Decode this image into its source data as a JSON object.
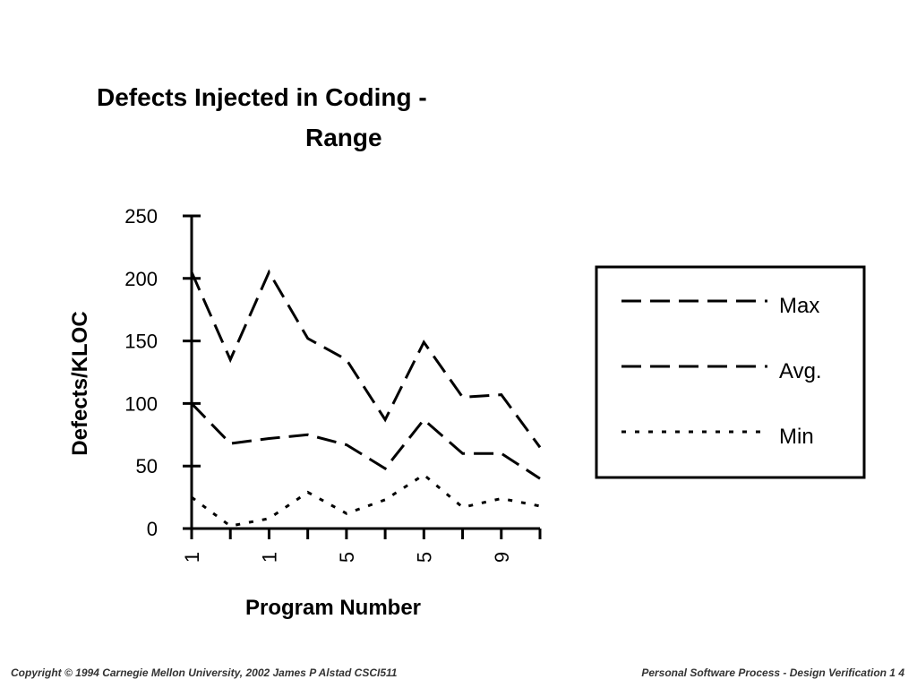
{
  "chart_data": {
    "type": "line",
    "title_line1": "Defects Injected in Coding -",
    "title_line2": "Range",
    "xlabel": "Program Number",
    "ylabel": "Defects/KLOC",
    "ylim": [
      0,
      250
    ],
    "yticks": [
      0,
      50,
      100,
      150,
      200,
      250
    ],
    "x_tick_labels": [
      "1",
      "",
      "1",
      "",
      "5",
      "",
      "5",
      "",
      "9",
      ""
    ],
    "series": [
      {
        "name": "Max",
        "values": [
          205,
          135,
          205,
          152,
          135,
          87,
          149,
          105,
          107,
          65
        ]
      },
      {
        "name": "Avg.",
        "values": [
          100,
          68,
          72,
          75,
          67,
          48,
          87,
          60,
          60,
          40
        ]
      },
      {
        "name": "Min",
        "values": [
          25,
          2,
          8,
          29,
          12,
          23,
          43,
          17,
          24,
          18
        ]
      }
    ],
    "legend_position": "right"
  },
  "footer": {
    "left": "Copyright  © 1994 Carnegie Mellon University, 2002 James P Alstad   CSCI511",
    "right": "Personal Software Process - Design Verification 1 4"
  }
}
